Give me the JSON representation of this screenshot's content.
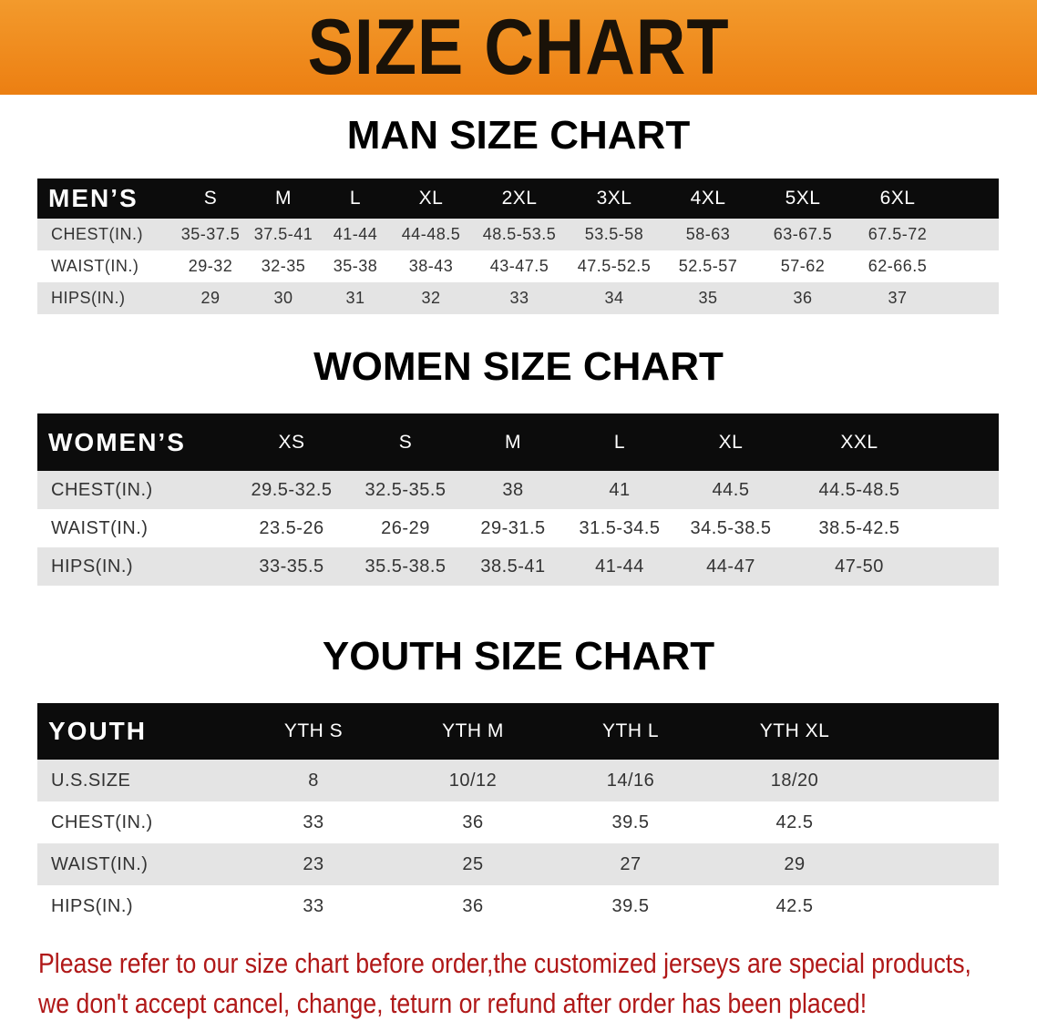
{
  "title": "SIZE CHART",
  "men": {
    "title": "MAN SIZE CHART",
    "header": [
      "MEN’S",
      "S",
      "M",
      "L",
      "XL",
      "2XL",
      "3XL",
      "4XL",
      "5XL",
      "6XL"
    ],
    "rows": [
      [
        "CHEST(IN.)",
        "35-37.5",
        "37.5-41",
        "41-44",
        "44-48.5",
        "48.5-53.5",
        "53.5-58",
        "58-63",
        "63-67.5",
        "67.5-72"
      ],
      [
        "WAIST(IN.)",
        "29-32",
        "32-35",
        "35-38",
        "38-43",
        "43-47.5",
        "47.5-52.5",
        "52.5-57",
        "57-62",
        "62-66.5"
      ],
      [
        "HIPS(IN.)",
        "29",
        "30",
        "31",
        "32",
        "33",
        "34",
        "35",
        "36",
        "37"
      ]
    ]
  },
  "women": {
    "title": "WOMEN SIZE CHART",
    "header": [
      "WOMEN’S",
      "XS",
      "S",
      "M",
      "L",
      "XL",
      "XXL"
    ],
    "rows": [
      [
        "CHEST(IN.)",
        "29.5-32.5",
        "32.5-35.5",
        "38",
        "41",
        "44.5",
        "44.5-48.5"
      ],
      [
        "WAIST(IN.)",
        "23.5-26",
        "26-29",
        "29-31.5",
        "31.5-34.5",
        "34.5-38.5",
        "38.5-42.5"
      ],
      [
        "HIPS(IN.)",
        "33-35.5",
        "35.5-38.5",
        "38.5-41",
        "41-44",
        "44-47",
        "47-50"
      ]
    ]
  },
  "youth": {
    "title": "YOUTH SIZE CHART",
    "header": [
      "YOUTH",
      "YTH S",
      "YTH M",
      "YTH L",
      "YTH XL"
    ],
    "rows": [
      [
        "U.S.SIZE",
        "8",
        "10/12",
        "14/16",
        "18/20"
      ],
      [
        "CHEST(IN.)",
        "33",
        "36",
        "39.5",
        "42.5"
      ],
      [
        "WAIST(IN.)",
        "23",
        "25",
        "27",
        "29"
      ],
      [
        "HIPS(IN.)",
        "33",
        "36",
        "39.5",
        "42.5"
      ]
    ]
  },
  "note": [
    "Please refer to our size chart before order,the customized jerseys are special products,",
    "we don't accept cancel, change, teturn or refund after order has been placed!"
  ],
  "colors": {
    "banner": "#ec7f12",
    "header_row": "#0c0c0c",
    "note": "#b01818"
  }
}
